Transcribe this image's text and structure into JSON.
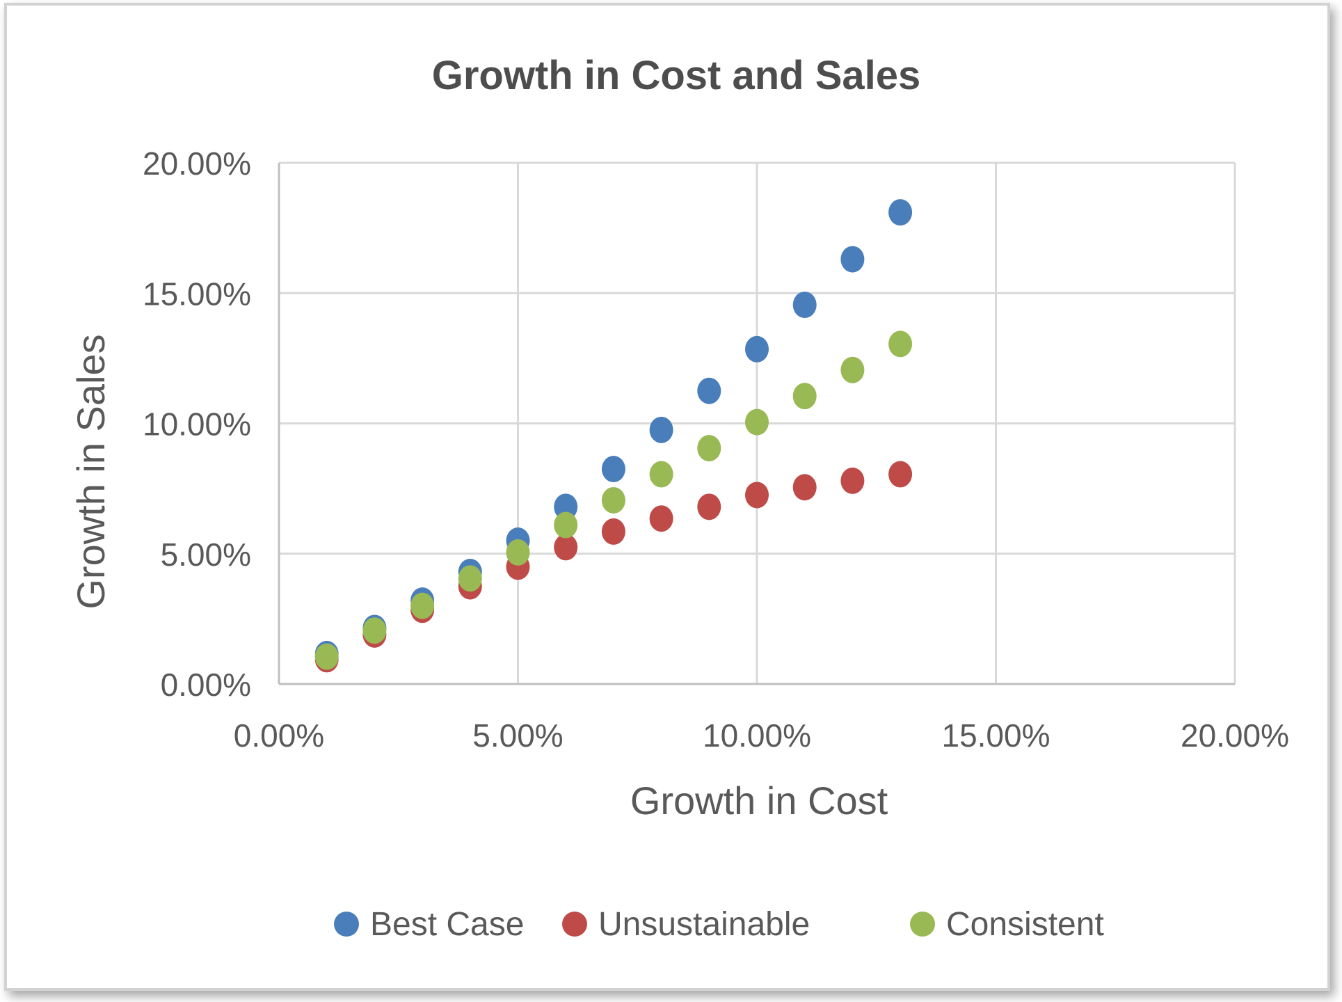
{
  "chart_data": {
    "type": "scatter",
    "title": "Growth in Cost and Sales",
    "xlabel": "Growth in Cost",
    "ylabel": "Growth in Sales",
    "xlim": [
      0,
      0.2
    ],
    "ylim": [
      0,
      0.2
    ],
    "x_ticks": [
      "0.00%",
      "5.00%",
      "10.00%",
      "15.00%",
      "20.00%"
    ],
    "y_ticks": [
      "0.00%",
      "5.00%",
      "10.00%",
      "15.00%",
      "20.00%"
    ],
    "grid": true,
    "legend_position": "bottom",
    "x": [
      0.01,
      0.02,
      0.03,
      0.04,
      0.05,
      0.06,
      0.07,
      0.08,
      0.09,
      0.1,
      0.11,
      0.12,
      0.13
    ],
    "series": [
      {
        "name": "Best Case",
        "color": "#4a7ebb",
        "values": [
          0.0115,
          0.0215,
          0.032,
          0.043,
          0.055,
          0.068,
          0.0825,
          0.0975,
          0.1125,
          0.1285,
          0.1455,
          0.163,
          0.181
        ]
      },
      {
        "name": "Unsustainable",
        "color": "#be4b48",
        "values": [
          0.0095,
          0.019,
          0.0285,
          0.0375,
          0.045,
          0.0525,
          0.0585,
          0.0635,
          0.068,
          0.0725,
          0.0755,
          0.078,
          0.0805
        ]
      },
      {
        "name": "Consistent",
        "color": "#98b954",
        "values": [
          0.0105,
          0.0205,
          0.03,
          0.0405,
          0.0505,
          0.061,
          0.0705,
          0.0805,
          0.0905,
          0.1005,
          0.1105,
          0.1205,
          0.1305
        ]
      }
    ],
    "colors": {
      "text": "#595959",
      "title": "#4d4d4d",
      "grid": "#d9d9d9",
      "axis": "#bfbfbf"
    }
  }
}
